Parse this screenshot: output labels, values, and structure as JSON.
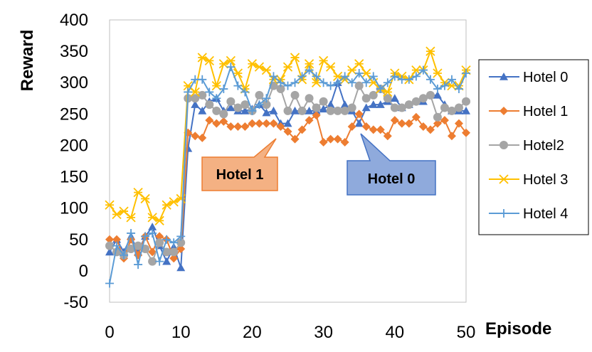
{
  "chart_data": {
    "type": "line",
    "xlabel": "Episode",
    "ylabel": "Reward",
    "xlim": [
      0,
      50
    ],
    "ylim": [
      -50,
      400
    ],
    "xticks": [
      0,
      10,
      20,
      30,
      40,
      50
    ],
    "yticks": [
      -50,
      0,
      50,
      100,
      150,
      200,
      250,
      300,
      350,
      400
    ],
    "grid": false,
    "legend_position": "right",
    "series": [
      {
        "name": "Hotel 0",
        "color": "#4472c4",
        "marker": "triangle",
        "values": [
          30,
          50,
          30,
          55,
          30,
          55,
          70,
          40,
          15,
          38,
          5,
          195,
          265,
          255,
          270,
          275,
          255,
          260,
          255,
          255,
          258,
          265,
          252,
          255,
          235,
          235,
          255,
          255,
          255,
          255,
          258,
          265,
          300,
          265,
          255,
          235,
          260,
          265,
          265,
          270,
          275,
          260,
          265,
          270,
          270,
          280,
          280,
          265,
          255,
          255,
          255
        ]
      },
      {
        "name": "Hotel 1",
        "color": "#ed7d31",
        "marker": "diamond",
        "values": [
          50,
          50,
          20,
          50,
          25,
          55,
          30,
          55,
          50,
          20,
          35,
          220,
          215,
          212,
          240,
          235,
          238,
          230,
          230,
          230,
          235,
          235,
          235,
          235,
          230,
          222,
          210,
          225,
          240,
          248,
          205,
          210,
          210,
          205,
          230,
          250,
          230,
          225,
          225,
          215,
          240,
          235,
          235,
          245,
          230,
          225,
          235,
          240,
          215,
          235,
          220
        ]
      },
      {
        "name": "Hotel2",
        "color": "#a5a5a5",
        "marker": "circle",
        "values": [
          40,
          30,
          25,
          35,
          40,
          35,
          15,
          45,
          30,
          30,
          45,
          275,
          275,
          280,
          265,
          255,
          250,
          270,
          260,
          265,
          255,
          280,
          265,
          295,
          290,
          255,
          280,
          255,
          275,
          260,
          270,
          255,
          255,
          255,
          260,
          295,
          275,
          280,
          290,
          275,
          260,
          260,
          265,
          270,
          275,
          280,
          245,
          260,
          255,
          260,
          270
        ]
      },
      {
        "name": "Hotel 3",
        "color": "#ffc000",
        "marker": "x",
        "values": [
          105,
          90,
          95,
          85,
          125,
          115,
          85,
          80,
          105,
          110,
          115,
          295,
          285,
          340,
          335,
          295,
          330,
          335,
          315,
          290,
          330,
          325,
          320,
          305,
          305,
          325,
          340,
          305,
          330,
          300,
          335,
          325,
          310,
          305,
          320,
          330,
          315,
          300,
          290,
          285,
          315,
          310,
          305,
          320,
          320,
          350,
          315,
          300,
          295,
          295,
          320
        ]
      },
      {
        "name": "Hotel 4",
        "color": "#5b9bd5",
        "marker": "plus",
        "values": [
          -20,
          40,
          25,
          60,
          10,
          55,
          60,
          15,
          50,
          45,
          55,
          285,
          305,
          305,
          285,
          275,
          290,
          325,
          295,
          285,
          255,
          265,
          275,
          310,
          300,
          295,
          300,
          310,
          320,
          310,
          300,
          295,
          300,
          310,
          300,
          315,
          300,
          310,
          290,
          300,
          310,
          305,
          305,
          310,
          320,
          305,
          290,
          295,
          305,
          290,
          315
        ]
      }
    ],
    "annotations": [
      {
        "text": "Hotel 1",
        "fill": "#f4b183",
        "stroke": "#ed7d31"
      },
      {
        "text": "Hotel 0",
        "fill": "#8faadc",
        "stroke": "#4472c4"
      }
    ]
  }
}
